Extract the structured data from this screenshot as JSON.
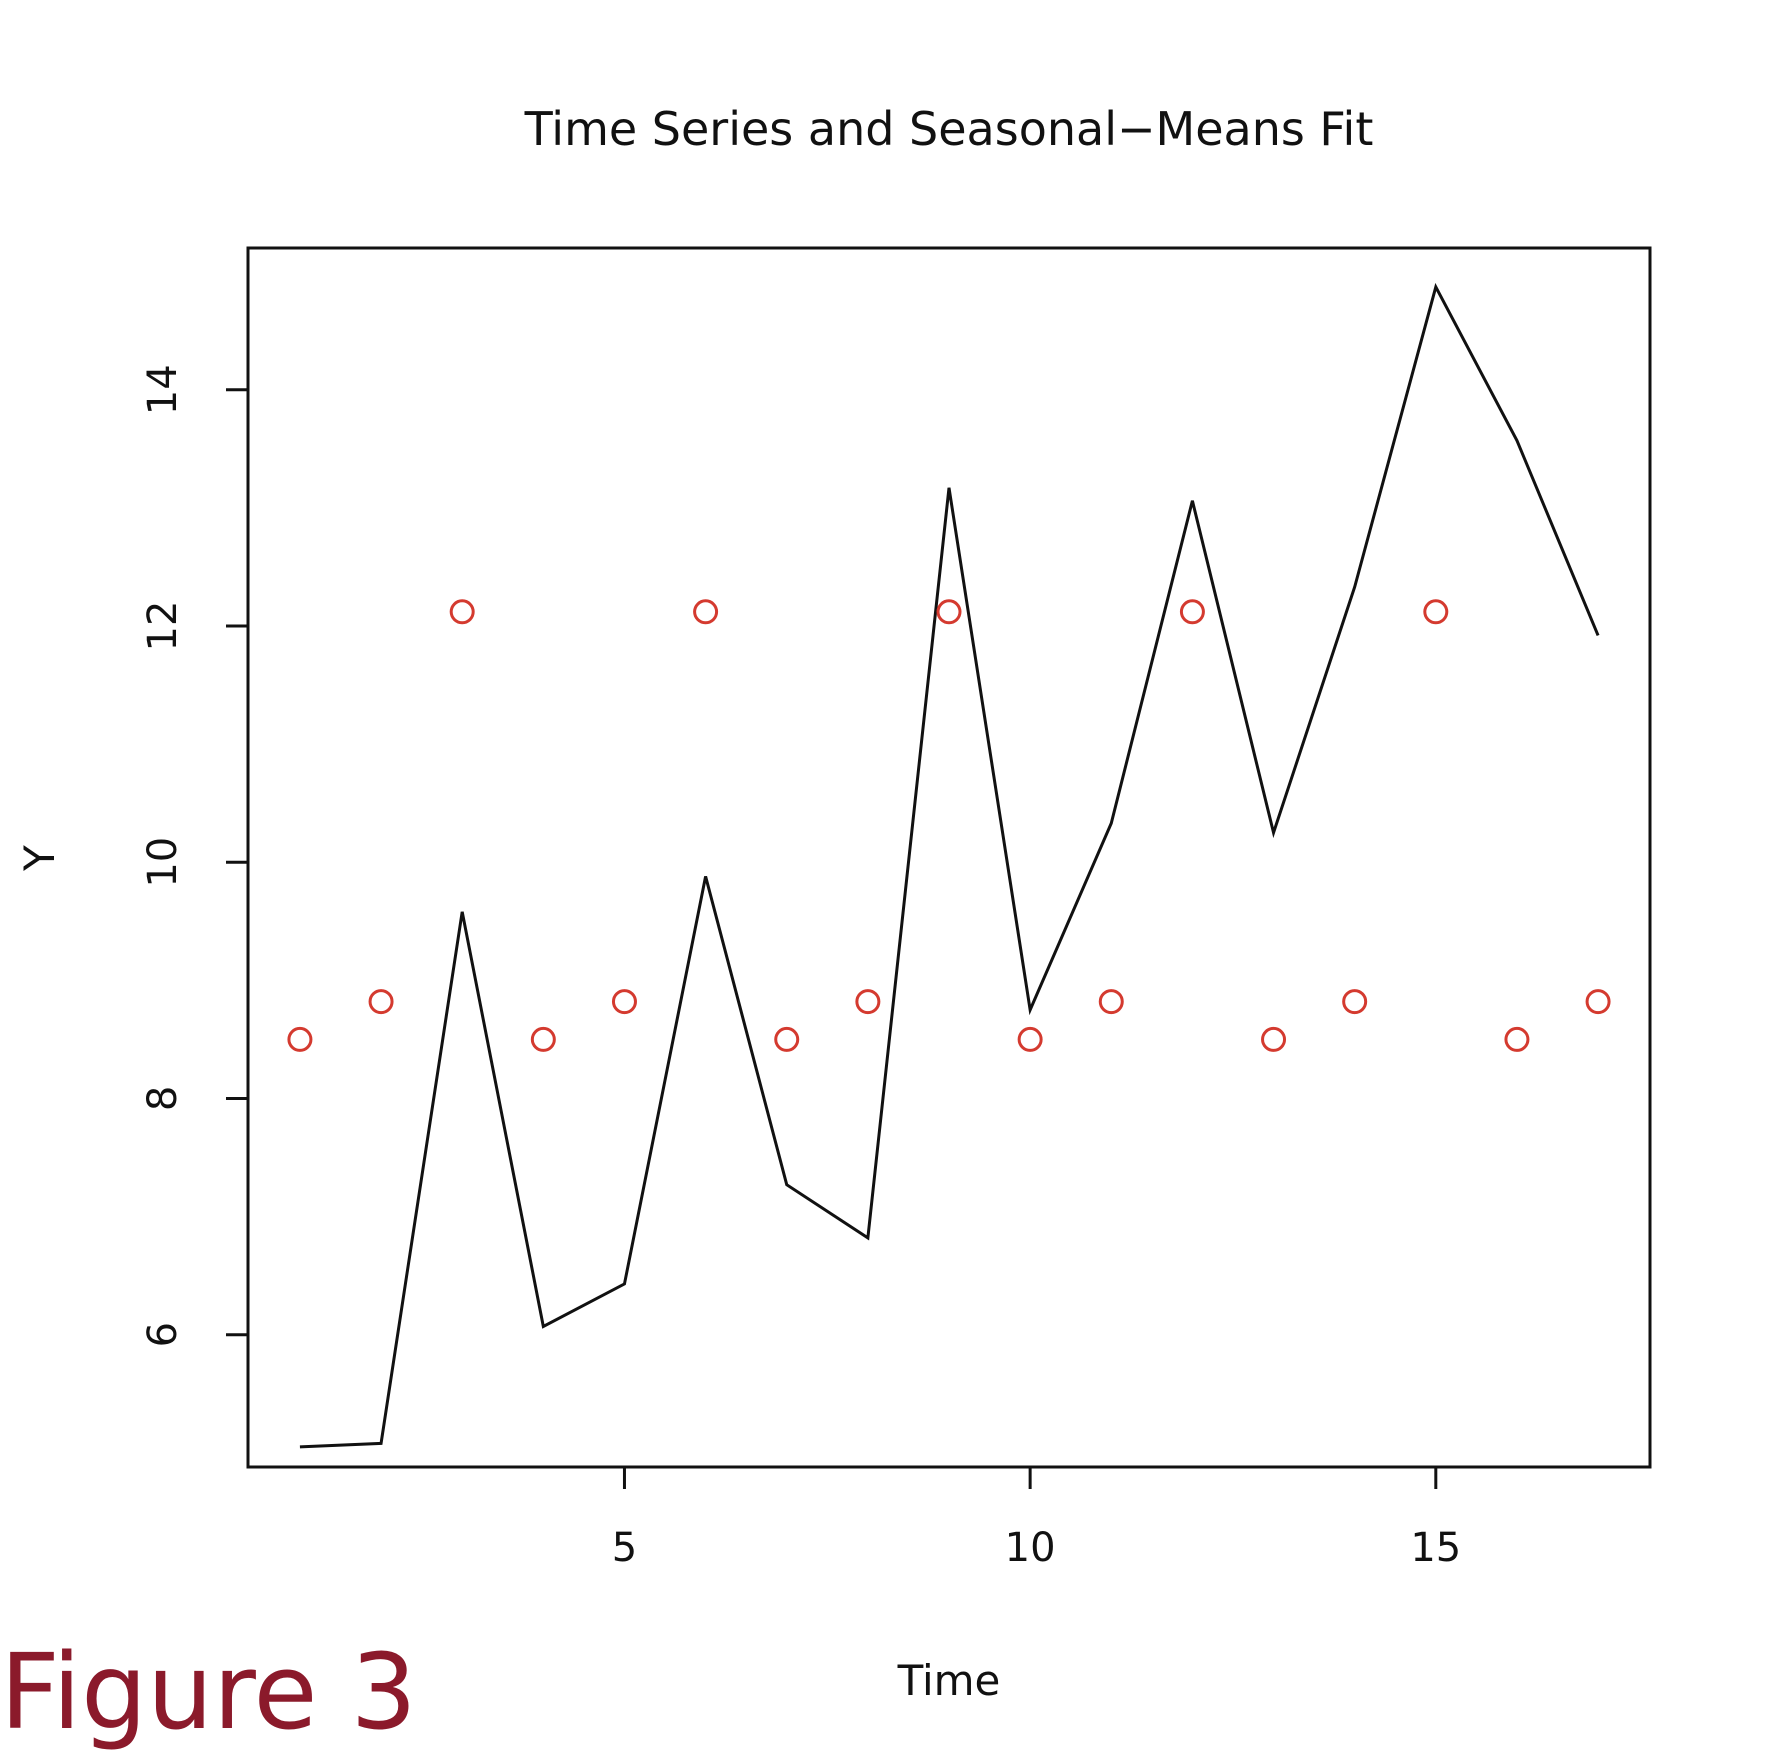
{
  "figure_label": "Figure 3",
  "chart_data": {
    "type": "line",
    "title": "Time Series and Seasonal−Means Fit",
    "xlabel": "Time",
    "ylabel": "Y",
    "xlim": [
      0.36,
      17.64
    ],
    "ylim": [
      4.88,
      15.2
    ],
    "x_ticks": [
      {
        "value": 5,
        "label": "5"
      },
      {
        "value": 10,
        "label": "10"
      },
      {
        "value": 15,
        "label": "15"
      }
    ],
    "y_ticks": [
      {
        "value": 6,
        "label": "6"
      },
      {
        "value": 8,
        "label": "8"
      },
      {
        "value": 10,
        "label": "10"
      },
      {
        "value": 12,
        "label": "12"
      },
      {
        "value": 14,
        "label": "14"
      }
    ],
    "grid": false,
    "legend": "none",
    "series": [
      {
        "kind": "line",
        "color": "#111111",
        "x": [
          1,
          2,
          3,
          4,
          5,
          6,
          7,
          8,
          9,
          10,
          11,
          12,
          13,
          14,
          15,
          16,
          17
        ],
        "y": [
          5.05,
          5.08,
          9.58,
          6.07,
          6.43,
          9.88,
          7.27,
          6.82,
          13.17,
          8.75,
          10.33,
          13.06,
          10.25,
          12.33,
          14.87,
          13.57,
          11.92
        ]
      },
      {
        "kind": "points",
        "color": "#d43a2f",
        "x": [
          1,
          2,
          3,
          4,
          5,
          6,
          7,
          8,
          9,
          10,
          11,
          12,
          13,
          14,
          15,
          16,
          17
        ],
        "y": [
          8.5,
          8.82,
          12.12,
          8.5,
          8.82,
          12.12,
          8.5,
          8.82,
          12.12,
          8.5,
          8.82,
          12.12,
          8.5,
          8.82,
          12.12,
          8.5,
          8.82
        ]
      }
    ]
  }
}
